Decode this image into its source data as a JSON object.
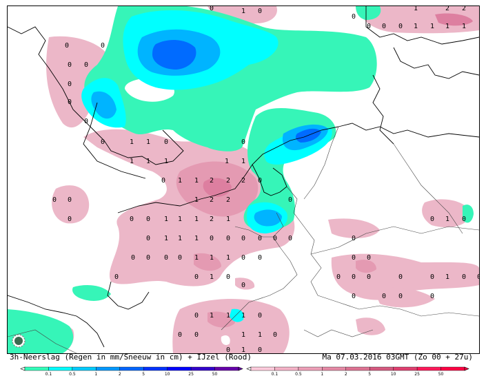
{
  "caption": {
    "left": "3h-Neerslag (Regen in mm/Sneeuw in cm) + IJzel (Rood)",
    "right": "Ma 07.03.2016 03GMT (Zo 00 + 27u)"
  },
  "legend_rain": {
    "ticks": [
      "0.1",
      "0.5",
      "1",
      "2",
      "5",
      "10",
      "25",
      "50"
    ],
    "colors": [
      "#33ffbb",
      "#00ffff",
      "#00ccff",
      "#0099ff",
      "#0066ff",
      "#0033ff",
      "#0000ff",
      "#3300cc",
      "#6600aa"
    ]
  },
  "legend_ice": {
    "ticks": [
      "0.1",
      "0.5",
      "1",
      "2",
      "5",
      "10",
      "25",
      "50"
    ],
    "colors": [
      "#ffccdd",
      "#f5b3c8",
      "#eea0b8",
      "#e68aa6",
      "#de7393",
      "#d65a80",
      "#e04070",
      "#ff1a5a",
      "#ff0044"
    ]
  },
  "map_colors": {
    "pink": "#ecb7c8",
    "pink_mid": "#e49ab2",
    "pink_dark": "#dd7fa0",
    "aqua": "#36f5b8",
    "cyan": "#00ffff",
    "sky": "#00b4ff",
    "blue": "#006bff"
  },
  "map_labels": [
    [
      "0",
      "96",
      "64"
    ],
    [
      "0",
      "148",
      "64"
    ],
    [
      "0",
      "100",
      "92"
    ],
    [
      "0",
      "124",
      "92"
    ],
    [
      "0",
      "100",
      "120"
    ],
    [
      "0",
      "100",
      "146"
    ],
    [
      "0",
      "124",
      "174"
    ],
    [
      "0",
      "148",
      "204"
    ],
    [
      "1",
      "190",
      "204"
    ],
    [
      "1",
      "214",
      "204"
    ],
    [
      "0",
      "240",
      "204"
    ],
    [
      "0",
      "352",
      "204"
    ],
    [
      "1",
      "190",
      "232"
    ],
    [
      "1",
      "214",
      "232"
    ],
    [
      "1",
      "240",
      "232"
    ],
    [
      "1",
      "328",
      "232"
    ],
    [
      "1",
      "352",
      "232"
    ],
    [
      "0",
      "236",
      "260"
    ],
    [
      "1",
      "260",
      "260"
    ],
    [
      "1",
      "284",
      "260"
    ],
    [
      "2",
      "306",
      "260"
    ],
    [
      "2",
      "330",
      "260"
    ],
    [
      "2",
      "352",
      "260"
    ],
    [
      "0",
      "376",
      "260"
    ],
    [
      "0",
      "78",
      "288"
    ],
    [
      "0",
      "100",
      "288"
    ],
    [
      "1",
      "284",
      "288"
    ],
    [
      "2",
      "306",
      "288"
    ],
    [
      "2",
      "330",
      "288"
    ],
    [
      "0",
      "420",
      "288"
    ],
    [
      "0",
      "100",
      "316"
    ],
    [
      "0",
      "190",
      "316"
    ],
    [
      "0",
      "214",
      "316"
    ],
    [
      "1",
      "240",
      "316"
    ],
    [
      "1",
      "260",
      "316"
    ],
    [
      "1",
      "284",
      "316"
    ],
    [
      "2",
      "306",
      "316"
    ],
    [
      "1",
      "330",
      "316"
    ],
    [
      "0",
      "626",
      "316"
    ],
    [
      "1",
      "648",
      "316"
    ],
    [
      "0",
      "672",
      "316"
    ],
    [
      "0",
      "214",
      "344"
    ],
    [
      "1",
      "240",
      "344"
    ],
    [
      "1",
      "260",
      "344"
    ],
    [
      "1",
      "284",
      "344"
    ],
    [
      "0",
      "306",
      "344"
    ],
    [
      "0",
      "330",
      "344"
    ],
    [
      "0",
      "352",
      "344"
    ],
    [
      "0",
      "376",
      "344"
    ],
    [
      "0",
      "398",
      "344"
    ],
    [
      "0",
      "420",
      "344"
    ],
    [
      "0",
      "512",
      "344"
    ],
    [
      "0",
      "192",
      "372"
    ],
    [
      "0",
      "214",
      "372"
    ],
    [
      "0",
      "240",
      "372"
    ],
    [
      "0",
      "260",
      "372"
    ],
    [
      "1",
      "284",
      "372"
    ],
    [
      "1",
      "306",
      "372"
    ],
    [
      "1",
      "330",
      "372"
    ],
    [
      "0",
      "352",
      "372"
    ],
    [
      "0",
      "376",
      "372"
    ],
    [
      "0",
      "512",
      "372"
    ],
    [
      "0",
      "534",
      "372"
    ],
    [
      "0",
      "168",
      "400"
    ],
    [
      "0",
      "284",
      "400"
    ],
    [
      "1",
      "306",
      "400"
    ],
    [
      "0",
      "330",
      "400"
    ],
    [
      "0",
      "490",
      "400"
    ],
    [
      "0",
      "512",
      "400"
    ],
    [
      "0",
      "534",
      "400"
    ],
    [
      "0",
      "580",
      "400"
    ],
    [
      "0",
      "626",
      "400"
    ],
    [
      "1",
      "648",
      "400"
    ],
    [
      "0",
      "672",
      "400"
    ],
    [
      "0",
      "694",
      "400"
    ],
    [
      "0",
      "352",
      "412"
    ],
    [
      "0",
      "512",
      "428"
    ],
    [
      "0",
      "556",
      "428"
    ],
    [
      "0",
      "580",
      "428"
    ],
    [
      "0",
      "626",
      "428"
    ],
    [
      "0",
      "284",
      "456"
    ],
    [
      "1",
      "306",
      "456"
    ],
    [
      "1",
      "330",
      "456"
    ],
    [
      "1",
      "352",
      "456"
    ],
    [
      "0",
      "376",
      "456"
    ],
    [
      "0",
      "260",
      "484"
    ],
    [
      "0",
      "284",
      "484"
    ],
    [
      "1",
      "352",
      "484"
    ],
    [
      "1",
      "376",
      "484"
    ],
    [
      "0",
      "398",
      "484"
    ],
    [
      "0",
      "330",
      "506"
    ],
    [
      "1",
      "352",
      "506"
    ],
    [
      "0",
      "376",
      "506"
    ],
    [
      "0",
      "512",
      "22"
    ],
    [
      "0",
      "534",
      "36"
    ],
    [
      "0",
      "556",
      "36"
    ],
    [
      "0",
      "580",
      "36"
    ],
    [
      "1",
      "602",
      "36"
    ],
    [
      "1",
      "626",
      "36"
    ],
    [
      "1",
      "648",
      "36"
    ],
    [
      "1",
      "672",
      "36"
    ],
    [
      "1",
      "602",
      "10"
    ],
    [
      "2",
      "648",
      "10"
    ],
    [
      "2",
      "672",
      "10"
    ],
    [
      "0",
      "306",
      "10"
    ],
    [
      "1",
      "352",
      "14"
    ],
    [
      "0",
      "376",
      "14"
    ]
  ]
}
